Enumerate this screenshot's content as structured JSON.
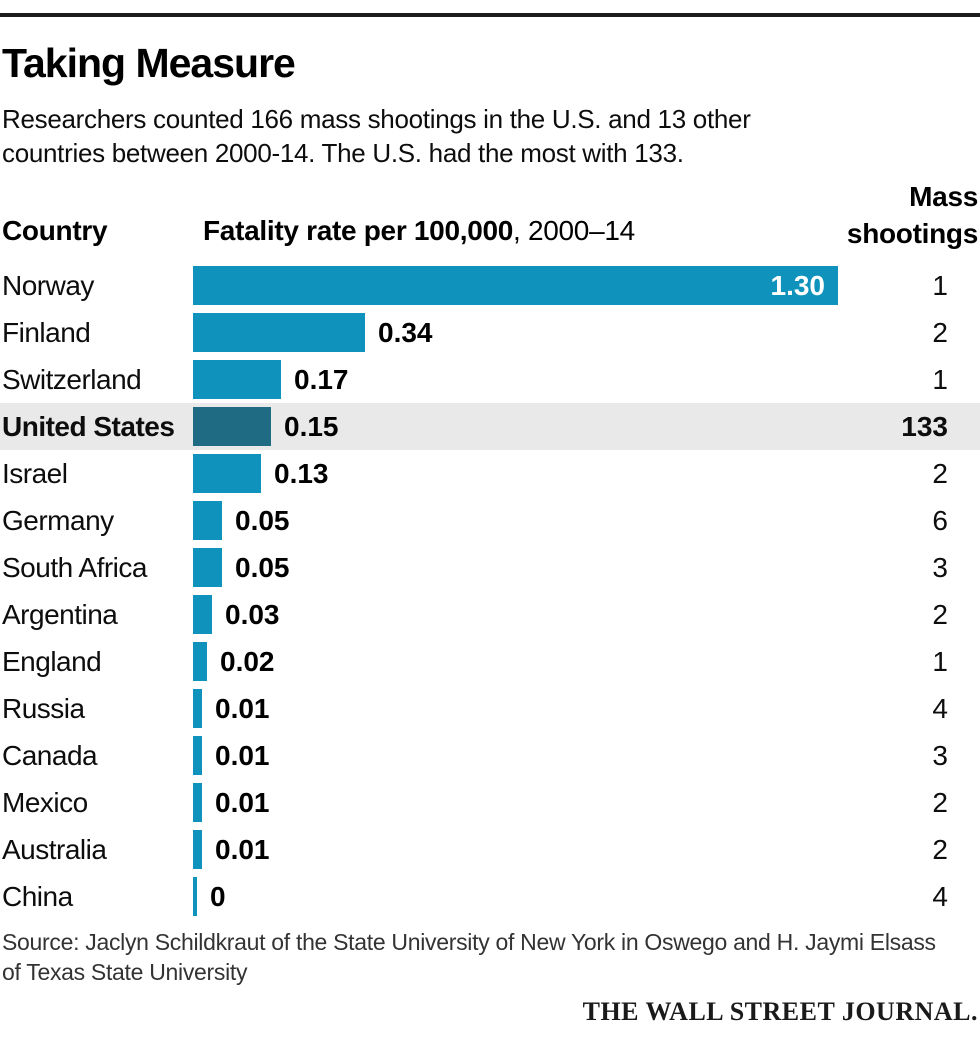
{
  "header": {
    "title": "Taking Measure",
    "subtitle_lines": [
      "Researchers counted 166 mass shootings in the U.S. and 13 other",
      "countries between 2000-14. The U.S. had the most with 133."
    ]
  },
  "columns": {
    "country": "Country",
    "rate_bold": "Fatality rate per 100,000",
    "rate_light": ", 2000–14",
    "shootings_line1": "Mass",
    "shootings_line2": "shootings"
  },
  "chart_data": {
    "type": "bar",
    "orientation": "horizontal",
    "title": "Taking Measure",
    "xlabel": "Fatality rate per 100,000, 2000–14",
    "xlim": [
      0,
      1.3
    ],
    "grid": false,
    "categories": [
      "Norway",
      "Finland",
      "Switzerland",
      "United States",
      "Israel",
      "Germany",
      "South Africa",
      "Argentina",
      "England",
      "Russia",
      "Canada",
      "Mexico",
      "Australia",
      "China"
    ],
    "series": [
      {
        "name": "Fatality rate per 100,000, 2000–14",
        "values": [
          1.3,
          0.34,
          0.17,
          0.15,
          0.13,
          0.05,
          0.05,
          0.03,
          0.02,
          0.01,
          0.01,
          0.01,
          0.01,
          0
        ]
      },
      {
        "name": "Mass shootings",
        "values": [
          1,
          2,
          1,
          133,
          2,
          6,
          3,
          2,
          1,
          4,
          3,
          2,
          2,
          4
        ]
      }
    ],
    "value_labels": [
      "1.30",
      "0.34",
      "0.17",
      "0.15",
      "0.13",
      "0.05",
      "0.05",
      "0.03",
      "0.02",
      "0.01",
      "0.01",
      "0.01",
      "0.01",
      "0"
    ],
    "count_labels": [
      "1",
      "2",
      "1",
      "133",
      "2",
      "6",
      "3",
      "2",
      "1",
      "4",
      "3",
      "2",
      "2",
      "4"
    ],
    "highlighted_category": "United States",
    "highlight_index": 3,
    "bar_color": "#0f93bd",
    "highlight_bar_color": "#1e6b83",
    "highlight_row_bg": "#e9e9e9",
    "inside_label_color": "#ffffff"
  },
  "source": {
    "line1": "Source: Jaclyn Schildkraut of the State University of New York in Oswego and H. Jaymi Elsass",
    "line2": "of Texas State University"
  },
  "footer": {
    "brand": "THE WALL STREET JOURNAL."
  }
}
